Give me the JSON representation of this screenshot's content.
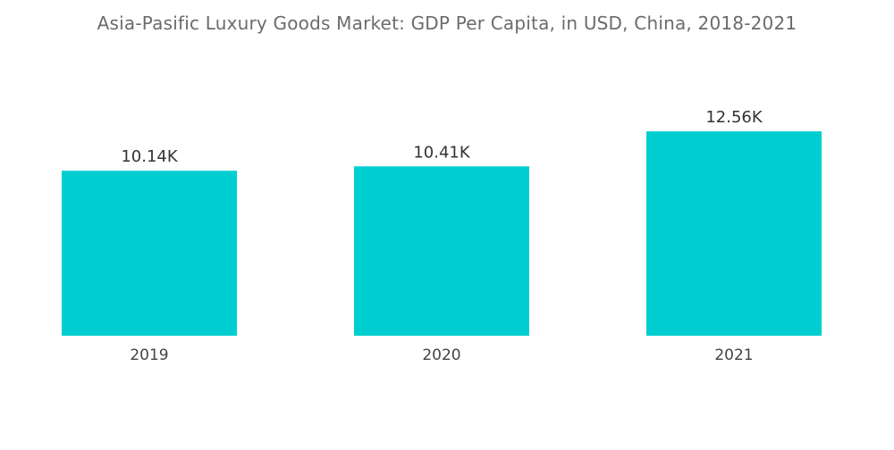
{
  "chart_data": {
    "type": "bar",
    "title": "Asia-Pasific Luxury Goods Market: GDP Per Capita, in USD, China, 2018-2021",
    "categories": [
      "2019",
      "2020",
      "2021"
    ],
    "values": [
      10.14,
      10.41,
      12.56
    ],
    "data_labels": [
      "10.14K",
      "10.41K",
      "12.56K"
    ],
    "ylim": [
      0,
      13.5
    ],
    "xlabel": "",
    "ylabel": "",
    "grid": false,
    "legend": "none",
    "bar_color": "#00CED1"
  }
}
